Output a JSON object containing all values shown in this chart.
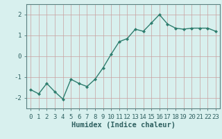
{
  "x": [
    0,
    1,
    2,
    3,
    4,
    5,
    6,
    7,
    8,
    9,
    10,
    11,
    12,
    13,
    14,
    15,
    16,
    17,
    18,
    19,
    20,
    21,
    22,
    23
  ],
  "y": [
    -1.6,
    -1.8,
    -1.3,
    -1.7,
    -2.05,
    -1.1,
    -1.3,
    -1.45,
    -1.1,
    -0.55,
    0.1,
    0.7,
    0.85,
    1.3,
    1.2,
    1.6,
    2.0,
    1.55,
    1.35,
    1.3,
    1.35,
    1.35,
    1.35,
    1.2
  ],
  "line_color": "#2e7d6e",
  "marker": "D",
  "marker_size": 2.0,
  "linewidth": 1.0,
  "xlabel": "Humidex (Indice chaleur)",
  "xlabel_fontsize": 7.5,
  "ylim": [
    -2.5,
    2.5
  ],
  "xlim": [
    -0.5,
    23.5
  ],
  "yticks": [
    -2,
    -1,
    0,
    1,
    2
  ],
  "xticks": [
    0,
    1,
    2,
    3,
    4,
    5,
    6,
    7,
    8,
    9,
    10,
    11,
    12,
    13,
    14,
    15,
    16,
    17,
    18,
    19,
    20,
    21,
    22,
    23
  ],
  "grid_color": "#c8a0a0",
  "grid_linewidth": 0.5,
  "bg_color": "#d8f0ee",
  "tick_fontsize": 6.5,
  "tick_color": "#2e6060",
  "spine_color": "#5a8080"
}
